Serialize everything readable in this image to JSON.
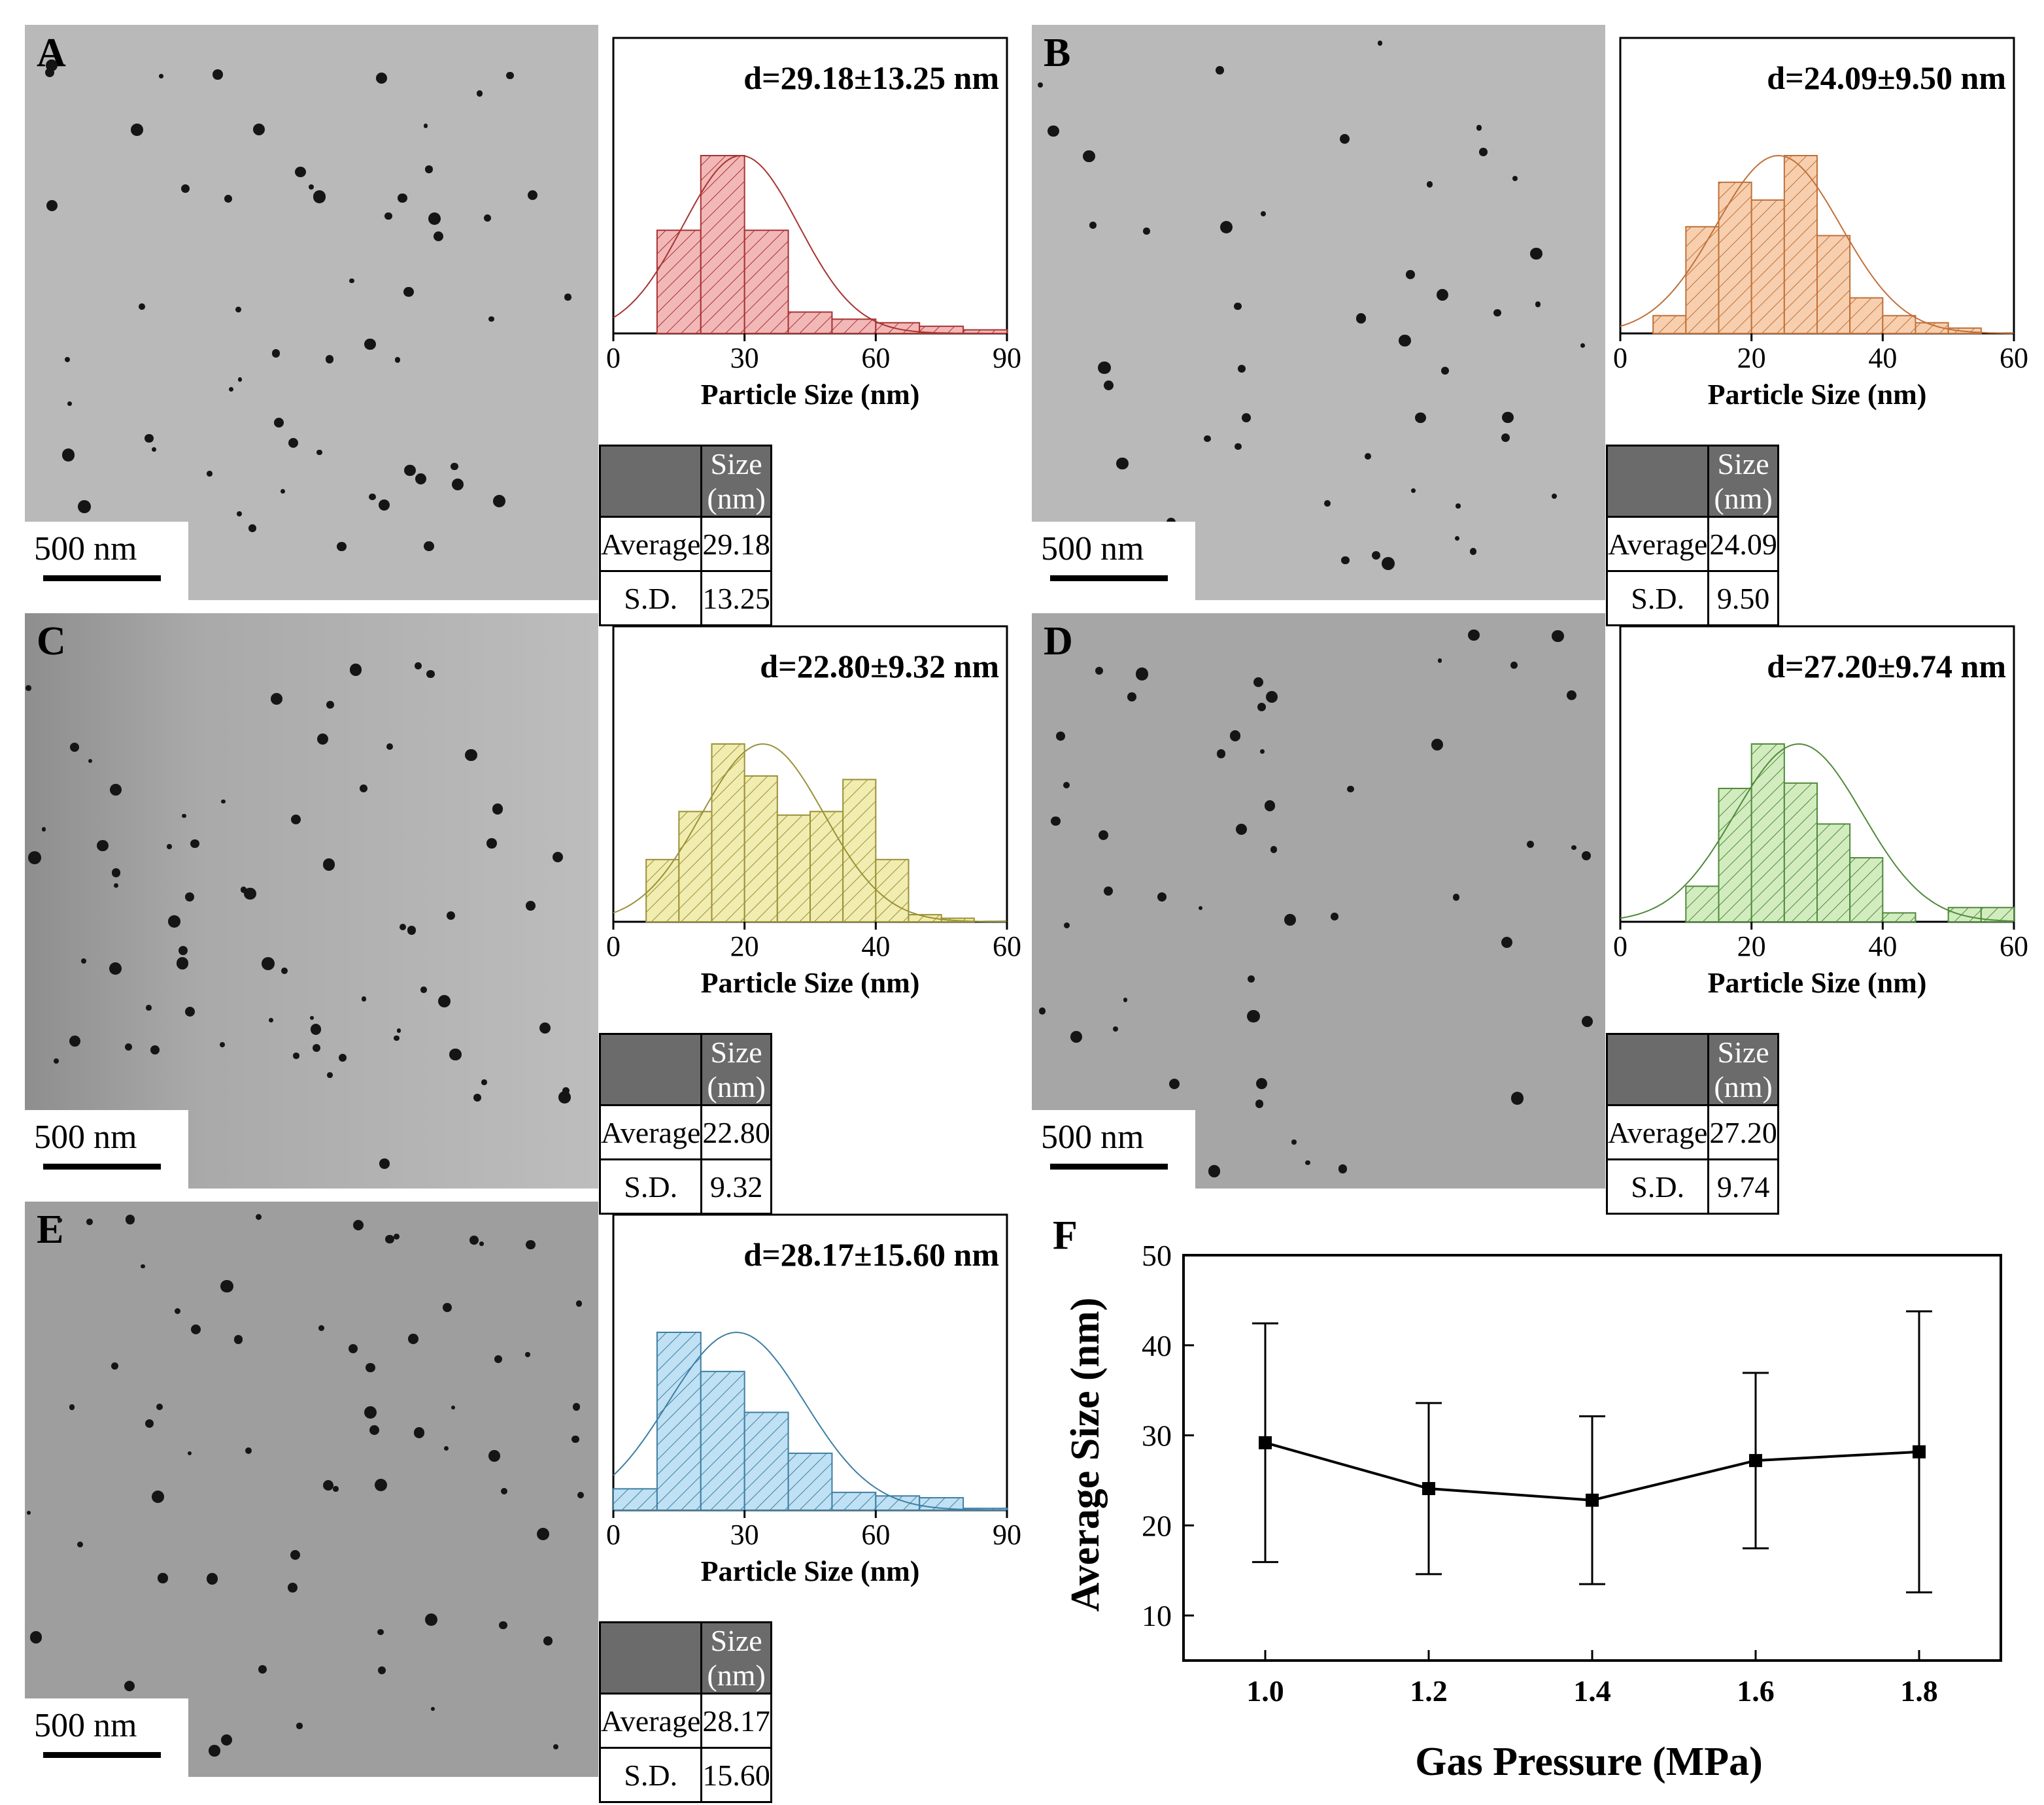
{
  "scale_bar_label": "500 nm",
  "table_header": "Size (nm)",
  "row_labels": [
    "Average",
    "S.D."
  ],
  "hist_xlabel": "Particle Size (nm)",
  "panels": [
    {
      "letter": "A",
      "annotation": "d=29.18±13.25 nm",
      "average": "29.18",
      "sd": "13.25",
      "color": "#f2b8b8",
      "edge": "#a83232",
      "fit_mean": 29.18,
      "fit_sd": 13.25,
      "xmax": 90,
      "ticks": [
        "0",
        "30",
        "60",
        "90"
      ],
      "bins": [
        [
          0,
          10,
          0
        ],
        [
          10,
          20,
          0.58
        ],
        [
          20,
          30,
          1.0
        ],
        [
          30,
          40,
          0.58
        ],
        [
          40,
          50,
          0.12
        ],
        [
          50,
          60,
          0.08
        ],
        [
          60,
          70,
          0.06
        ],
        [
          70,
          80,
          0.04
        ],
        [
          80,
          90,
          0.02
        ]
      ]
    },
    {
      "letter": "B",
      "annotation": "d=24.09±9.50 nm",
      "average": "24.09",
      "sd": "9.50",
      "color": "#f7cfae",
      "edge": "#c0703a",
      "fit_mean": 24.09,
      "fit_sd": 9.5,
      "xmax": 60,
      "ticks": [
        "0",
        "20",
        "40",
        "60"
      ],
      "bins": [
        [
          5,
          10,
          0.1
        ],
        [
          10,
          15,
          0.6
        ],
        [
          15,
          20,
          0.85
        ],
        [
          20,
          25,
          0.75
        ],
        [
          25,
          30,
          1.0
        ],
        [
          30,
          35,
          0.55
        ],
        [
          35,
          40,
          0.2
        ],
        [
          40,
          45,
          0.1
        ],
        [
          45,
          50,
          0.06
        ],
        [
          50,
          55,
          0.03
        ]
      ]
    },
    {
      "letter": "C",
      "annotation": "d=22.80±9.32 nm",
      "average": "22.80",
      "sd": "9.32",
      "color": "#f1ecb0",
      "edge": "#9a9136",
      "fit_mean": 22.8,
      "fit_sd": 9.32,
      "xmax": 60,
      "ticks": [
        "0",
        "20",
        "40",
        "60"
      ],
      "bins": [
        [
          5,
          10,
          0.35
        ],
        [
          10,
          15,
          0.62
        ],
        [
          15,
          20,
          1.0
        ],
        [
          20,
          25,
          0.82
        ],
        [
          25,
          30,
          0.6
        ],
        [
          30,
          35,
          0.62
        ],
        [
          35,
          40,
          0.8
        ],
        [
          40,
          45,
          0.35
        ],
        [
          45,
          50,
          0.04
        ],
        [
          50,
          55,
          0.02
        ]
      ]
    },
    {
      "letter": "D",
      "annotation": "d=27.20±9.74 nm",
      "average": "27.20",
      "sd": "9.74",
      "color": "#d2ecc0",
      "edge": "#4f8a3a",
      "fit_mean": 27.2,
      "fit_sd": 9.74,
      "xmax": 60,
      "ticks": [
        "0",
        "20",
        "40",
        "60"
      ],
      "bins": [
        [
          10,
          15,
          0.2
        ],
        [
          15,
          20,
          0.75
        ],
        [
          20,
          25,
          1.0
        ],
        [
          25,
          30,
          0.78
        ],
        [
          30,
          35,
          0.55
        ],
        [
          35,
          40,
          0.36
        ],
        [
          40,
          45,
          0.05
        ],
        [
          45,
          50,
          0.0
        ],
        [
          50,
          55,
          0.08
        ],
        [
          55,
          60,
          0.08
        ]
      ]
    },
    {
      "letter": "E",
      "annotation": "d=28.17±15.60 nm",
      "average": "28.17",
      "sd": "15.60",
      "color": "#bfe1f3",
      "edge": "#3e7ea3",
      "fit_mean": 28.17,
      "fit_sd": 15.6,
      "xmax": 90,
      "ticks": [
        "0",
        "30",
        "60",
        "90"
      ],
      "bins": [
        [
          0,
          10,
          0.12
        ],
        [
          10,
          20,
          1.0
        ],
        [
          20,
          30,
          0.78
        ],
        [
          30,
          40,
          0.55
        ],
        [
          40,
          50,
          0.32
        ],
        [
          50,
          60,
          0.1
        ],
        [
          60,
          70,
          0.08
        ],
        [
          70,
          80,
          0.07
        ],
        [
          80,
          90,
          0.01
        ]
      ]
    }
  ],
  "chart_data": {
    "type": "line",
    "letter": "F",
    "xlabel": "Gas Pressure (MPa)",
    "ylabel": "Average Size (nm)",
    "x": [
      1.0,
      1.2,
      1.4,
      1.6,
      1.8
    ],
    "x_tick_labels": [
      "1.0",
      "1.2",
      "1.4",
      "1.6",
      "1.8"
    ],
    "y": [
      29.18,
      24.09,
      22.8,
      27.2,
      28.17
    ],
    "error": [
      13.25,
      9.5,
      9.32,
      9.74,
      15.6
    ],
    "y_tick_labels": [
      "10",
      "20",
      "30",
      "40",
      "50"
    ],
    "xlim": [
      0.9,
      1.9
    ],
    "ylim": [
      5,
      50
    ]
  }
}
